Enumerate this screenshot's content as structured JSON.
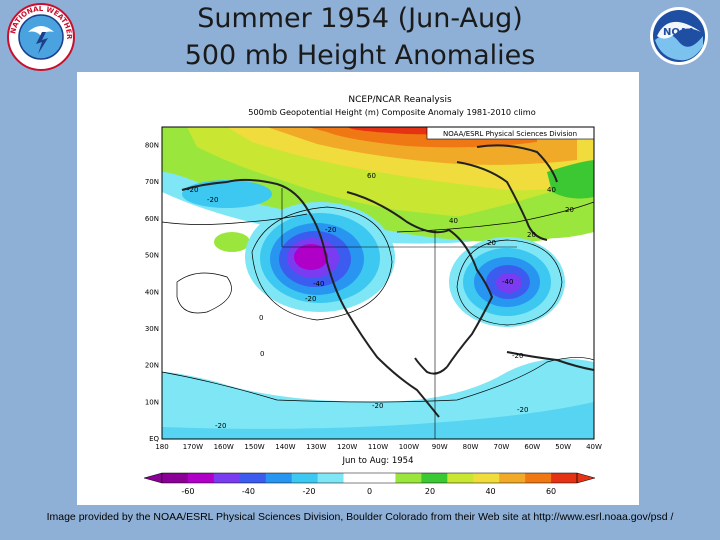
{
  "slide": {
    "title_line1": "Summer 1954 (Jun-Aug)",
    "title_line2": "500 mb Height Anomalies"
  },
  "logos": {
    "left": {
      "icon": "nws-logo-icon",
      "text": "NATIONAL WEATHER SERVICE"
    },
    "right": {
      "icon": "noaa-logo-icon",
      "text": "NOAA"
    }
  },
  "map": {
    "header_line1": "NCEP/NCAR Reanalysis",
    "header_line2": "500mb Geopotential Height (m) Composite Anomaly 1981-2010 climo",
    "source_tag": "NOAA/ESRL Physical Sciences Division",
    "period_label": "Jun to Aug: 1954",
    "lat_labels": [
      "80N",
      "70N",
      "60N",
      "50N",
      "40N",
      "30N",
      "20N",
      "10N",
      "EQ"
    ],
    "lon_labels": [
      "180",
      "170W",
      "160W",
      "150W",
      "140W",
      "130W",
      "120W",
      "110W",
      "100W",
      "90W",
      "80W",
      "70W",
      "60W",
      "50W",
      "40W"
    ],
    "contour_labels": [
      "60",
      "40",
      "20",
      "0",
      "-20",
      "-40",
      "-20",
      "-20",
      "-20",
      "-20",
      "-20",
      "-20",
      "20",
      "40",
      "20",
      "-20",
      "-40",
      "0"
    ],
    "colorbar": {
      "ticks": [
        "-60",
        "-40",
        "-20",
        "0",
        "20",
        "40",
        "60"
      ],
      "colors": [
        "#8a0096",
        "#b000c8",
        "#7a3cf0",
        "#3c5cf0",
        "#2896f0",
        "#3cc8f0",
        "#7ee6f5",
        "#ffffff",
        "#ffffff",
        "#9be63c",
        "#3cc832",
        "#c8e632",
        "#f0dc3c",
        "#f0aa28",
        "#f07814",
        "#e63214"
      ]
    }
  },
  "credit": "Image provided by the NOAA/ESRL Physical Sciences Division, Boulder Colorado from their Web site at http://www.esrl.noaa.gov/psd /"
}
